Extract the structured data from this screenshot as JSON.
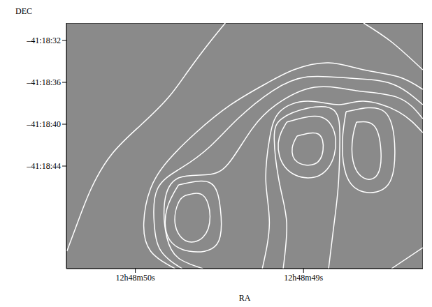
{
  "chart_data": {
    "type": "contour",
    "x_label": "RA",
    "y_label": "DEC",
    "color": "#ffffff",
    "grid": false,
    "xlim": [
      48.29,
      50.41
    ],
    "ylim": [
      -53.8,
      -30.33
    ],
    "xticks": [
      {
        "value": 50,
        "label": "12h48m50s"
      },
      {
        "value": 49,
        "label": "12h48m49s"
      }
    ],
    "yticks": [
      {
        "value": -32,
        "label": "–41:18:32"
      },
      {
        "value": -36,
        "label": "–41:18:36"
      },
      {
        "value": -40,
        "label": "–41:18:40"
      },
      {
        "value": -44,
        "label": "–41:18:44"
      }
    ],
    "contours": [
      [
        [
          49.465,
          -30.33
        ],
        [
          49.556,
          -32.13
        ],
        [
          49.681,
          -34.8
        ],
        [
          49.805,
          -37.47
        ],
        [
          49.971,
          -40.13
        ],
        [
          50.137,
          -42.8
        ],
        [
          50.262,
          -46.13
        ],
        [
          50.345,
          -49.47
        ],
        [
          50.407,
          -52.13
        ]
      ],
      [
        [
          48.643,
          -30.33
        ],
        [
          48.477,
          -32.13
        ],
        [
          48.291,
          -34.8
        ]
      ],
      [
        [
          48.291,
          -36.67
        ],
        [
          48.436,
          -35.47
        ],
        [
          48.643,
          -34.8
        ],
        [
          48.851,
          -34.13
        ],
        [
          49.058,
          -34.8
        ],
        [
          49.224,
          -36.13
        ],
        [
          49.432,
          -38.13
        ],
        [
          49.639,
          -40.8
        ],
        [
          49.805,
          -43.47
        ],
        [
          49.909,
          -46.13
        ],
        [
          49.95,
          -49.47
        ],
        [
          49.909,
          -52.13
        ],
        [
          49.764,
          -53.8
        ]
      ],
      [
        [
          48.291,
          -38.13
        ],
        [
          48.477,
          -36.13
        ],
        [
          48.726,
          -35.6
        ],
        [
          48.975,
          -35.47
        ],
        [
          49.183,
          -36.8
        ],
        [
          49.39,
          -39.47
        ],
        [
          49.556,
          -42.13
        ],
        [
          49.722,
          -44.13
        ],
        [
          49.867,
          -46.13
        ],
        [
          49.888,
          -49.47
        ],
        [
          49.847,
          -52.13
        ],
        [
          49.722,
          -53.8
        ]
      ],
      [
        [
          48.291,
          -39.47
        ],
        [
          48.436,
          -37.47
        ],
        [
          48.685,
          -36.8
        ],
        [
          48.934,
          -36.47
        ],
        [
          49.162,
          -38.13
        ],
        [
          49.307,
          -40.47
        ],
        [
          49.432,
          -43.47
        ],
        [
          49.556,
          -44.8
        ],
        [
          49.743,
          -45.13
        ],
        [
          49.826,
          -47.47
        ],
        [
          49.813,
          -50.8
        ],
        [
          49.743,
          -52.8
        ],
        [
          49.598,
          -53.8
        ]
      ],
      [
        [
          49.701,
          -46.8
        ],
        [
          49.598,
          -46.8
        ],
        [
          49.556,
          -48.8
        ],
        [
          49.598,
          -50.8
        ],
        [
          49.701,
          -51.13
        ],
        [
          49.764,
          -49.47
        ],
        [
          49.743,
          -47.47
        ],
        [
          49.701,
          -46.8
        ]
      ],
      [
        [
          49.743,
          -45.8
        ],
        [
          49.556,
          -45.6
        ],
        [
          49.494,
          -48.13
        ],
        [
          49.515,
          -51.47
        ],
        [
          49.681,
          -52.13
        ],
        [
          49.805,
          -50.8
        ],
        [
          49.813,
          -48.13
        ],
        [
          49.743,
          -45.8
        ]
      ],
      [
        [
          49.038,
          -41.13
        ],
        [
          48.913,
          -40.93
        ],
        [
          48.884,
          -42.47
        ],
        [
          48.934,
          -43.8
        ],
        [
          49.038,
          -43.6
        ],
        [
          49.067,
          -42.27
        ],
        [
          49.038,
          -41.13
        ]
      ],
      [
        [
          49.1,
          -39.8
        ],
        [
          48.892,
          -39.33
        ],
        [
          48.809,
          -41.47
        ],
        [
          48.851,
          -44.13
        ],
        [
          48.975,
          -45.13
        ],
        [
          49.108,
          -44.13
        ],
        [
          49.15,
          -41.8
        ],
        [
          49.1,
          -39.8
        ]
      ],
      [
        [
          49.245,
          -53.8
        ],
        [
          49.203,
          -49.47
        ],
        [
          49.224,
          -45.47
        ],
        [
          49.203,
          -41.47
        ],
        [
          49.141,
          -38.8
        ],
        [
          48.975,
          -37.8
        ],
        [
          48.789,
          -38.13
        ],
        [
          48.643,
          -37.8
        ],
        [
          48.436,
          -38.8
        ],
        [
          48.291,
          -40.8
        ]
      ],
      [
        [
          49.121,
          -53.8
        ],
        [
          49.1,
          -49.47
        ],
        [
          49.141,
          -45.8
        ],
        [
          49.174,
          -41.47
        ],
        [
          49.129,
          -39.47
        ],
        [
          48.975,
          -38.47
        ],
        [
          48.818,
          -38.67
        ],
        [
          48.784,
          -41.47
        ],
        [
          48.793,
          -45.8
        ],
        [
          48.818,
          -49.47
        ],
        [
          48.851,
          -53.8
        ]
      ],
      [
        [
          48.685,
          -39.8
        ],
        [
          48.581,
          -40.13
        ],
        [
          48.54,
          -42.47
        ],
        [
          48.56,
          -44.8
        ],
        [
          48.643,
          -45.13
        ],
        [
          48.706,
          -43.47
        ],
        [
          48.706,
          -41.13
        ],
        [
          48.685,
          -39.8
        ]
      ],
      [
        [
          48.747,
          -38.8
        ],
        [
          48.519,
          -38.8
        ],
        [
          48.457,
          -42.47
        ],
        [
          48.498,
          -45.8
        ],
        [
          48.643,
          -46.47
        ],
        [
          48.747,
          -44.8
        ],
        [
          48.768,
          -41.47
        ],
        [
          48.747,
          -38.8
        ]
      ],
      [
        [
          48.477,
          -53.8
        ],
        [
          48.291,
          -51.8
        ]
      ]
    ]
  }
}
